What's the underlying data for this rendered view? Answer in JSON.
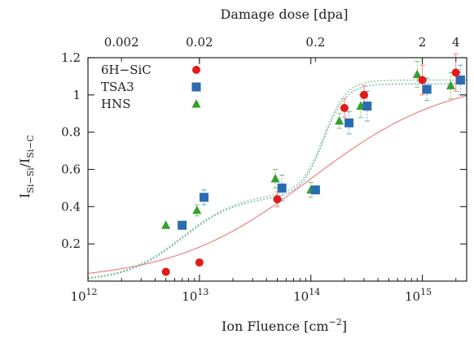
{
  "chart_data": {
    "type": "scatter",
    "xlabel": "Ion Fluence [cm",
    "xlabel_sup": "−2",
    "xlabel_end": "]",
    "x2label": "Damage dose [dpa]",
    "ylabel_base": "I",
    "ylabel_sub1": "Si−Si",
    "ylabel_sep": "/I",
    "ylabel_sub2": "Si−C",
    "xscale": "log",
    "xlim": [
      1000000000000.0,
      2500000000000000.0
    ],
    "ylim": [
      0,
      1.2
    ],
    "x_ticks": [
      {
        "value": 1000000000000.0,
        "base": "10",
        "exp": "12"
      },
      {
        "value": 10000000000000.0,
        "base": "10",
        "exp": "13"
      },
      {
        "value": 100000000000000.0,
        "base": "10",
        "exp": "14"
      },
      {
        "value": 1000000000000000.0,
        "base": "10",
        "exp": "15"
      }
    ],
    "y_ticks": [
      {
        "value": 0.2,
        "label": "0.2"
      },
      {
        "value": 0.4,
        "label": "0.4"
      },
      {
        "value": 0.6,
        "label": "0.6"
      },
      {
        "value": 0.8,
        "label": "0.8"
      },
      {
        "value": 1.0,
        "label": "1"
      },
      {
        "value": 1.2,
        "label": "1.2"
      }
    ],
    "x2_ticks": [
      {
        "value": 2000000000000.0,
        "label": "0.002"
      },
      {
        "value": 10000000000000.0,
        "label": "0.02"
      },
      {
        "value": 110000000000000.0,
        "label": "0.2"
      },
      {
        "value": 1000000000000000.0,
        "label": "2"
      },
      {
        "value": 2000000000000000.0,
        "label": "4"
      }
    ],
    "legend_position": "top-left",
    "series": [
      {
        "name": "6H−SiC",
        "marker": "circle",
        "color": "#e31a1c",
        "points": [
          {
            "x": 5000000000000.0,
            "y": 0.05
          },
          {
            "x": 10000000000000.0,
            "y": 0.1
          },
          {
            "x": 50000000000000.0,
            "y": 0.44,
            "err": 0.04
          },
          {
            "x": 200000000000000.0,
            "y": 0.93,
            "err": 0.05
          },
          {
            "x": 300000000000000.0,
            "y": 1.0,
            "err": 0.05
          },
          {
            "x": 1000000000000000.0,
            "y": 1.08,
            "err": 0.08
          },
          {
            "x": 2000000000000000.0,
            "y": 1.12,
            "err": 0.1
          }
        ],
        "fit": {
          "type": "sigmoid",
          "lower": 0.0,
          "upper": 1.1,
          "center": 100000000000000.0,
          "width": 0.62,
          "style": "solid"
        }
      },
      {
        "name": "TSA3",
        "marker": "square",
        "color": "#2b6cb0",
        "points": [
          {
            "x": 7000000000000.0,
            "y": 0.3
          },
          {
            "x": 11000000000000.0,
            "y": 0.45,
            "err": 0.04
          },
          {
            "x": 55000000000000.0,
            "y": 0.5,
            "err": 0.07
          },
          {
            "x": 110000000000000.0,
            "y": 0.49
          },
          {
            "x": 220000000000000.0,
            "y": 0.85,
            "err": 0.06
          },
          {
            "x": 320000000000000.0,
            "y": 0.94,
            "err": 0.08
          },
          {
            "x": 1100000000000000.0,
            "y": 1.03,
            "err": 0.06
          },
          {
            "x": 2200000000000000.0,
            "y": 1.08,
            "err": 0.08
          }
        ],
        "fit": {
          "type": "two-step",
          "base": 0.0,
          "step1": 0.46,
          "c1": 7000000000000.0,
          "w1": 0.25,
          "upper": 1.06,
          "c2": 130000000000000.0,
          "w2": 0.1,
          "style": "dotted"
        }
      },
      {
        "name": "HNS",
        "marker": "triangle",
        "color": "#33a02c",
        "points": [
          {
            "x": 5000000000000.0,
            "y": 0.3
          },
          {
            "x": 9500000000000.0,
            "y": 0.38,
            "err": 0.03
          },
          {
            "x": 48000000000000.0,
            "y": 0.55,
            "err": 0.05
          },
          {
            "x": 100000000000000.0,
            "y": 0.49,
            "err": 0.04
          },
          {
            "x": 180000000000000.0,
            "y": 0.86,
            "err": 0.04
          },
          {
            "x": 280000000000000.0,
            "y": 0.94,
            "err": 0.06
          },
          {
            "x": 900000000000000.0,
            "y": 1.11,
            "err": 0.07
          },
          {
            "x": 1800000000000000.0,
            "y": 1.05,
            "err": 0.07
          }
        ],
        "fit": {
          "type": "two-step",
          "base": 0.0,
          "step1": 0.475,
          "c1": 7000000000000.0,
          "w1": 0.26,
          "upper": 1.08,
          "c2": 130000000000000.0,
          "w2": 0.1,
          "style": "dotted"
        }
      }
    ]
  }
}
